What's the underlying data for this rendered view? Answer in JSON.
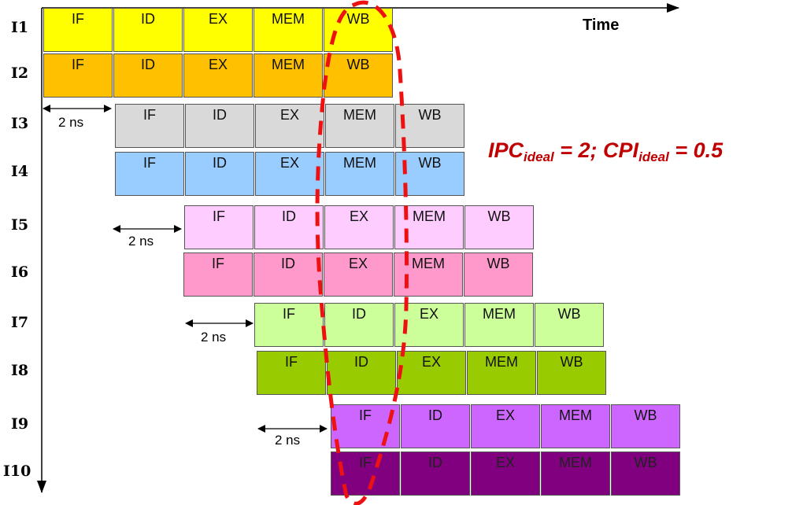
{
  "time_label": "Time",
  "formula": {
    "ipc": "IPC",
    "ipc_sub": "ideal",
    "ipc_value": " = 2; ",
    "cpi": "CPI",
    "cpi_sub": "ideal",
    "cpi_value": " = 0.5"
  },
  "ns_label": "2 ns",
  "stages": [
    "IF",
    "ID",
    "EX",
    "MEM",
    "WB"
  ],
  "instructions": [
    {
      "label": "I1",
      "color": "#ffff00"
    },
    {
      "label": "I2",
      "color": "#ffc000"
    },
    {
      "label": "I3",
      "color": "#d9d9d9"
    },
    {
      "label": "I4",
      "color": "#99ccff"
    },
    {
      "label": "I5",
      "color": "#ffccff"
    },
    {
      "label": "I6",
      "color": "#ff99cc"
    },
    {
      "label": "I7",
      "color": "#ccff99"
    },
    {
      "label": "I8",
      "color": "#99cc00"
    },
    {
      "label": "I9",
      "color": "#cc66ff"
    },
    {
      "label": "I10",
      "color": "#800080"
    }
  ]
}
